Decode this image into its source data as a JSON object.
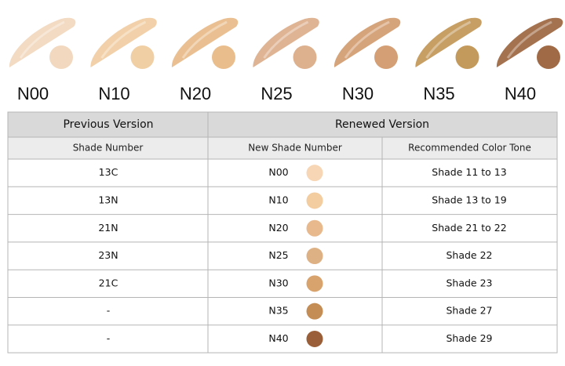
{
  "swatches": [
    {
      "label": "N00",
      "color": "#f2d8bf"
    },
    {
      "label": "N10",
      "color": "#f1cfa5"
    },
    {
      "label": "N20",
      "color": "#e9bd8c"
    },
    {
      "label": "N25",
      "color": "#ddb08e"
    },
    {
      "label": "N30",
      "color": "#d49f74"
    },
    {
      "label": "N35",
      "color": "#c49a5c"
    },
    {
      "label": "N40",
      "color": "#a06a46"
    }
  ],
  "table": {
    "header": [
      "Previous Version",
      "Renewed Version"
    ],
    "subheader": [
      "Shade Number",
      "New Shade Number",
      "Recommended Color Tone"
    ],
    "rows": [
      [
        "13C",
        "N00",
        "Shade 11 to 13"
      ],
      [
        "13N",
        "N10",
        "Shade 13 to 19"
      ],
      [
        "21N",
        "N20",
        "Shade 21 to 22"
      ],
      [
        "23N",
        "N25",
        "Shade 22"
      ],
      [
        "21C",
        "N30",
        "Shade 23"
      ],
      [
        "-",
        "N35",
        "Shade 27"
      ],
      [
        "-",
        "N40",
        "Shade 29"
      ]
    ],
    "dot_colors": [
      "#f7d6b5",
      "#f3cc9f",
      "#e8b98c",
      "#deb184",
      "#d9a36e",
      "#c48d55",
      "#9a5e38"
    ]
  }
}
